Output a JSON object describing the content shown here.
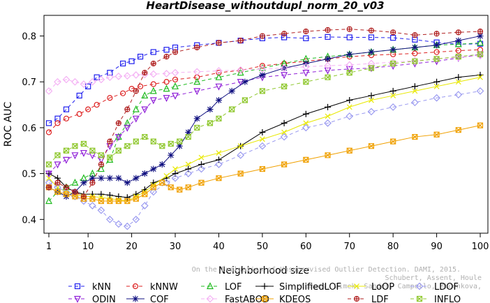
{
  "chart_data": {
    "type": "line",
    "title": "HeartDisease_withoutdupl_norm_20_v03",
    "xlabel": "Neighborhood size",
    "ylabel": "ROC AUC",
    "xlim": [
      1,
      100
    ],
    "ylim": [
      0.37,
      0.845
    ],
    "xticks": [
      1,
      10,
      20,
      30,
      40,
      50,
      60,
      70,
      80,
      90,
      100
    ],
    "yticks": [
      0.4,
      0.5,
      0.6,
      0.7,
      0.8
    ],
    "ytick_labels": [
      "0.4",
      "0.5",
      "0.6",
      "0.7",
      "0.8"
    ],
    "grid": false,
    "legend_position": "bottom",
    "watermark": [
      "Schubert, Assent, Houle",
      "Campos, Zimek, Sander, Campello, Micenkova,",
      "On the Evaluation of Unsupervised Outlier Detection. DAMI, 2015."
    ],
    "series": [
      {
        "name": "kNN",
        "color": "#2020ee",
        "marker": "square",
        "dash": "5,4",
        "x": [
          1,
          3,
          5,
          8,
          10,
          12,
          15,
          18,
          20,
          22,
          25,
          28,
          30,
          35,
          40,
          45,
          50,
          55,
          60,
          65,
          70,
          75,
          80,
          85,
          90,
          95,
          100
        ],
        "y": [
          0.61,
          0.62,
          0.64,
          0.67,
          0.69,
          0.71,
          0.72,
          0.74,
          0.745,
          0.755,
          0.765,
          0.77,
          0.775,
          0.78,
          0.785,
          0.79,
          0.795,
          0.797,
          0.795,
          0.798,
          0.797,
          0.797,
          0.796,
          0.792,
          0.786,
          0.782,
          0.783
        ]
      },
      {
        "name": "kNNW",
        "color": "#dd2020",
        "marker": "circle",
        "dash": "5,4",
        "x": [
          1,
          3,
          5,
          8,
          10,
          12,
          15,
          18,
          20,
          22,
          25,
          28,
          30,
          35,
          40,
          45,
          50,
          55,
          60,
          65,
          70,
          75,
          80,
          85,
          90,
          95,
          100
        ],
        "y": [
          0.59,
          0.61,
          0.62,
          0.63,
          0.64,
          0.65,
          0.665,
          0.675,
          0.685,
          0.69,
          0.695,
          0.7,
          0.705,
          0.71,
          0.72,
          0.725,
          0.735,
          0.74,
          0.745,
          0.75,
          0.755,
          0.758,
          0.76,
          0.762,
          0.765,
          0.768,
          0.77
        ]
      },
      {
        "name": "LOF",
        "color": "#20bb20",
        "marker": "triangle",
        "dash": "5,4",
        "x": [
          1,
          3,
          5,
          7,
          9,
          11,
          13,
          15,
          17,
          19,
          21,
          23,
          25,
          28,
          30,
          35,
          40,
          45,
          50,
          55,
          60,
          65,
          70,
          75,
          80,
          85,
          90,
          95,
          100
        ],
        "y": [
          0.44,
          0.46,
          0.47,
          0.48,
          0.49,
          0.5,
          0.51,
          0.53,
          0.58,
          0.61,
          0.64,
          0.67,
          0.68,
          0.685,
          0.69,
          0.7,
          0.71,
          0.72,
          0.73,
          0.74,
          0.75,
          0.755,
          0.76,
          0.765,
          0.77,
          0.775,
          0.78,
          0.782,
          0.785
        ]
      },
      {
        "name": "SimplifiedLOF",
        "color": "#000000",
        "marker": "plus",
        "dash": "none",
        "x": [
          1,
          3,
          5,
          7,
          9,
          11,
          13,
          15,
          17,
          19,
          21,
          23,
          25,
          28,
          30,
          33,
          36,
          40,
          45,
          50,
          55,
          60,
          65,
          70,
          75,
          80,
          85,
          90,
          95,
          100
        ],
        "y": [
          0.5,
          0.49,
          0.47,
          0.46,
          0.455,
          0.455,
          0.455,
          0.453,
          0.45,
          0.448,
          0.455,
          0.465,
          0.48,
          0.49,
          0.5,
          0.51,
          0.52,
          0.53,
          0.56,
          0.59,
          0.61,
          0.63,
          0.645,
          0.66,
          0.67,
          0.68,
          0.69,
          0.7,
          0.71,
          0.715
        ]
      },
      {
        "name": "LoOP",
        "color": "#e8e800",
        "marker": "x",
        "dash": "none",
        "x": [
          1,
          3,
          5,
          7,
          9,
          11,
          13,
          15,
          17,
          19,
          21,
          23,
          25,
          28,
          30,
          33,
          36,
          40,
          45,
          50,
          55,
          60,
          65,
          70,
          75,
          80,
          85,
          90,
          95,
          100
        ],
        "y": [
          0.49,
          0.47,
          0.46,
          0.455,
          0.45,
          0.45,
          0.448,
          0.445,
          0.443,
          0.44,
          0.45,
          0.46,
          0.475,
          0.495,
          0.51,
          0.52,
          0.535,
          0.545,
          0.56,
          0.575,
          0.59,
          0.61,
          0.625,
          0.645,
          0.66,
          0.67,
          0.68,
          0.69,
          0.7,
          0.71
        ]
      },
      {
        "name": "LDOF",
        "color": "#9a9af0",
        "marker": "diamond",
        "dash": "5,4",
        "x": [
          1,
          3,
          5,
          7,
          9,
          11,
          13,
          15,
          17,
          19,
          21,
          23,
          25,
          28,
          30,
          33,
          36,
          40,
          45,
          50,
          55,
          60,
          65,
          70,
          75,
          80,
          85,
          90,
          95,
          100
        ],
        "y": [
          0.48,
          0.47,
          0.46,
          0.45,
          0.44,
          0.43,
          0.42,
          0.4,
          0.39,
          0.385,
          0.4,
          0.43,
          0.46,
          0.48,
          0.49,
          0.5,
          0.51,
          0.52,
          0.54,
          0.56,
          0.58,
          0.6,
          0.61,
          0.625,
          0.635,
          0.645,
          0.655,
          0.665,
          0.672,
          0.68
        ]
      },
      {
        "name": "ODIN",
        "color": "#9020d8",
        "marker": "triangle-down",
        "dash": "5,4",
        "x": [
          1,
          3,
          5,
          7,
          9,
          11,
          13,
          15,
          17,
          19,
          21,
          23,
          25,
          28,
          30,
          35,
          40,
          45,
          50,
          55,
          60,
          65,
          70,
          75,
          80,
          85,
          90,
          95,
          100
        ],
        "y": [
          0.5,
          0.52,
          0.53,
          0.54,
          0.545,
          0.54,
          0.53,
          0.56,
          0.58,
          0.6,
          0.62,
          0.64,
          0.66,
          0.665,
          0.67,
          0.68,
          0.69,
          0.7,
          0.71,
          0.715,
          0.72,
          0.725,
          0.728,
          0.73,
          0.735,
          0.74,
          0.745,
          0.752,
          0.76
        ]
      },
      {
        "name": "COF",
        "color": "#101080",
        "marker": "star",
        "dash": "none",
        "x": [
          1,
          3,
          5,
          7,
          9,
          11,
          13,
          15,
          17,
          19,
          21,
          23,
          25,
          27,
          29,
          31,
          33,
          35,
          38,
          40,
          43,
          46,
          50,
          55,
          60,
          65,
          70,
          75,
          80,
          85,
          90,
          95,
          100
        ],
        "y": [
          0.47,
          0.46,
          0.45,
          0.46,
          0.48,
          0.49,
          0.49,
          0.49,
          0.49,
          0.48,
          0.49,
          0.5,
          0.51,
          0.52,
          0.54,
          0.56,
          0.59,
          0.62,
          0.64,
          0.66,
          0.68,
          0.7,
          0.715,
          0.73,
          0.74,
          0.75,
          0.76,
          0.765,
          0.77,
          0.775,
          0.78,
          0.79,
          0.8
        ]
      },
      {
        "name": "FastABOD",
        "color": "#f4b0f4",
        "marker": "diamond",
        "dash": "5,4",
        "x": [
          1,
          3,
          5,
          7,
          9,
          11,
          13,
          15,
          17,
          19,
          21,
          23,
          25,
          28,
          30,
          35,
          40,
          45,
          50,
          55,
          60,
          65,
          70,
          75,
          80,
          85,
          90,
          95,
          100
        ],
        "y": [
          0.68,
          0.7,
          0.705,
          0.7,
          0.695,
          0.7,
          0.705,
          0.71,
          0.712,
          0.713,
          0.715,
          0.716,
          0.717,
          0.718,
          0.72,
          0.722,
          0.724,
          0.726,
          0.728,
          0.73,
          0.733,
          0.735,
          0.737,
          0.74,
          0.743,
          0.746,
          0.75,
          0.753,
          0.757
        ]
      },
      {
        "name": "KDEOS",
        "color": "#f0a000",
        "marker": "square-x",
        "dash": "none",
        "x": [
          1,
          3,
          5,
          7,
          9,
          11,
          13,
          15,
          17,
          19,
          21,
          23,
          25,
          27,
          29,
          31,
          33,
          36,
          40,
          45,
          50,
          55,
          60,
          65,
          70,
          75,
          80,
          85,
          90,
          95,
          100
        ],
        "y": [
          0.47,
          0.46,
          0.455,
          0.45,
          0.445,
          0.445,
          0.44,
          0.44,
          0.44,
          0.44,
          0.445,
          0.455,
          0.47,
          0.48,
          0.47,
          0.465,
          0.47,
          0.48,
          0.49,
          0.5,
          0.51,
          0.52,
          0.53,
          0.54,
          0.55,
          0.56,
          0.57,
          0.58,
          0.585,
          0.595,
          0.605
        ]
      },
      {
        "name": "LDF",
        "color": "#b02020",
        "marker": "circle-plus",
        "dash": "5,4",
        "x": [
          1,
          3,
          5,
          7,
          9,
          11,
          13,
          15,
          17,
          19,
          21,
          23,
          25,
          28,
          30,
          35,
          40,
          45,
          50,
          55,
          60,
          65,
          70,
          75,
          80,
          85,
          90,
          95,
          100
        ],
        "y": [
          0.47,
          0.48,
          0.47,
          0.46,
          0.45,
          0.48,
          0.52,
          0.57,
          0.61,
          0.64,
          0.68,
          0.72,
          0.74,
          0.755,
          0.765,
          0.775,
          0.785,
          0.79,
          0.8,
          0.805,
          0.81,
          0.813,
          0.815,
          0.812,
          0.808,
          0.802,
          0.805,
          0.808,
          0.81
        ]
      },
      {
        "name": "INFLO",
        "color": "#90c830",
        "marker": "hourglass",
        "dash": "5,4",
        "x": [
          1,
          3,
          5,
          7,
          9,
          11,
          13,
          15,
          17,
          19,
          21,
          23,
          25,
          27,
          29,
          31,
          33,
          35,
          38,
          40,
          43,
          46,
          50,
          55,
          60,
          65,
          70,
          75,
          80,
          85,
          90,
          95,
          100
        ],
        "y": [
          0.52,
          0.54,
          0.55,
          0.56,
          0.565,
          0.55,
          0.54,
          0.535,
          0.55,
          0.56,
          0.57,
          0.58,
          0.57,
          0.56,
          0.565,
          0.57,
          0.58,
          0.6,
          0.61,
          0.62,
          0.64,
          0.66,
          0.68,
          0.69,
          0.7,
          0.71,
          0.72,
          0.73,
          0.74,
          0.745,
          0.75,
          0.755,
          0.76
        ]
      }
    ]
  }
}
